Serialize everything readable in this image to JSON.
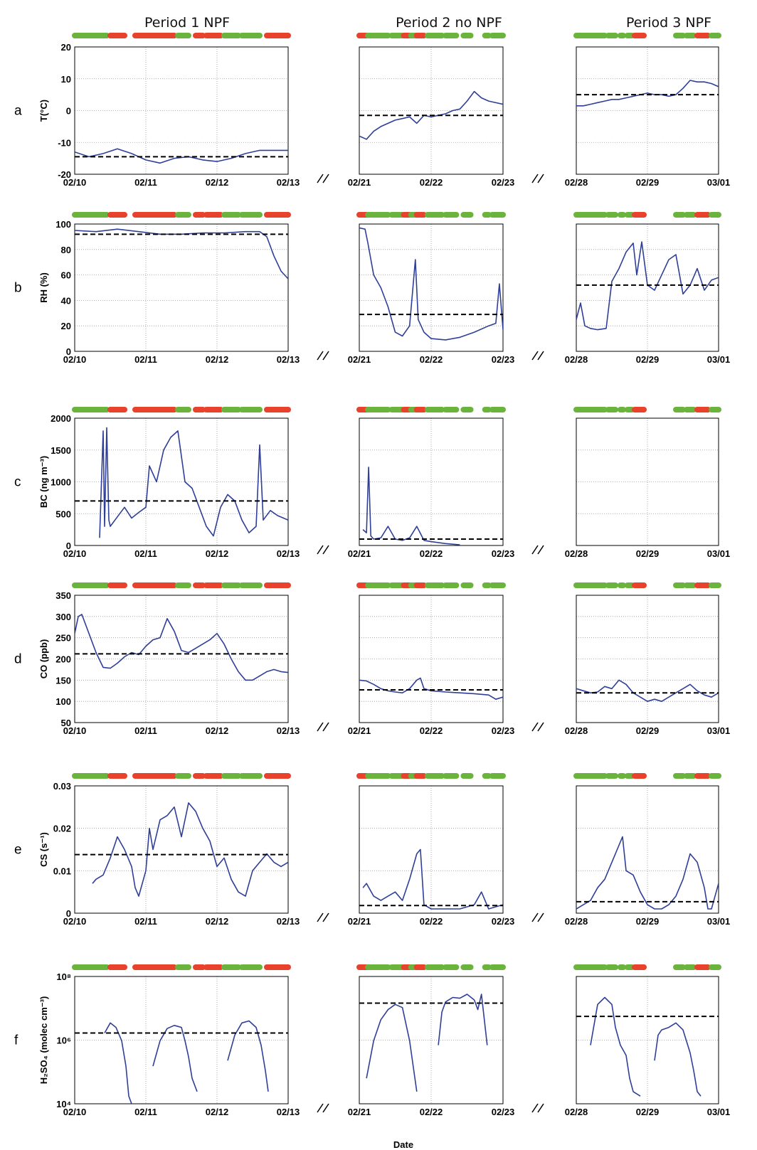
{
  "periods": [
    {
      "title": "Period 1 NPF",
      "start_day": 10,
      "end_day": 13,
      "tick_labels": [
        "02/10",
        "02/11",
        "02/12",
        "02/13"
      ]
    },
    {
      "title": "Period 2 no NPF",
      "start_day": 21,
      "end_day": 23,
      "tick_labels": [
        "02/21",
        "02/22",
        "02/23"
      ]
    },
    {
      "title": "Period 3 NPF",
      "start_day": 28,
      "end_day": 30,
      "tick_labels": [
        "02/28",
        "02/29",
        "03/01"
      ]
    }
  ],
  "xlabel": "Date",
  "colors": {
    "npf_marker": "#e8412c",
    "non_event_marker": "#6ab43e",
    "series": "#2f3f98",
    "mean_line": "#000000"
  },
  "chart_data": [
    {
      "type": "line",
      "panel_label": "a",
      "ylabel": "T(°C)",
      "ylim": [
        -20,
        20
      ],
      "yticks": [
        "-20",
        "-10",
        "0",
        "10",
        "20"
      ],
      "log_scale": false,
      "means": [
        -14.5,
        -1.5,
        5
      ],
      "series": [
        {
          "period": 1,
          "x": [
            10.0,
            10.2,
            10.4,
            10.6,
            10.8,
            11.0,
            11.2,
            11.4,
            11.6,
            11.8,
            12.0,
            12.2,
            12.4,
            12.6,
            12.8,
            13.0
          ],
          "y": [
            -13,
            -14.5,
            -13.5,
            -12,
            -13.5,
            -15.5,
            -16.5,
            -15,
            -14.5,
            -15.5,
            -16,
            -15,
            -13.5,
            -12.5,
            -12.5,
            -12.5
          ]
        },
        {
          "period": 2,
          "x": [
            21.0,
            21.1,
            21.2,
            21.3,
            21.4,
            21.5,
            21.6,
            21.7,
            21.8,
            21.9,
            22.0,
            22.1,
            22.2,
            22.3,
            22.4,
            22.5,
            22.6,
            22.7,
            22.8,
            23.0
          ],
          "y": [
            -8,
            -9,
            -6.5,
            -5,
            -4,
            -3,
            -2.5,
            -2,
            -4,
            -1.5,
            -2,
            -1.5,
            -1,
            0,
            0.5,
            3,
            6,
            4,
            3,
            2
          ]
        },
        {
          "period": 3,
          "x": [
            28.0,
            28.1,
            28.2,
            28.3,
            28.4,
            28.5,
            28.6,
            28.7,
            28.8,
            28.9,
            29.0,
            29.1,
            29.2,
            29.3,
            29.4,
            29.5,
            29.6,
            29.7,
            29.8,
            29.9,
            30.0
          ],
          "y": [
            1.5,
            1.5,
            2,
            2.5,
            3,
            3.5,
            3.5,
            4,
            4.5,
            5,
            5.5,
            5,
            5,
            4.5,
            5,
            7,
            9.5,
            9,
            9,
            8.5,
            7.5
          ]
        }
      ]
    },
    {
      "type": "line",
      "panel_label": "b",
      "ylabel": "RH (%)",
      "ylim": [
        0,
        100
      ],
      "yticks": [
        "0",
        "20",
        "40",
        "60",
        "80",
        "100"
      ],
      "log_scale": false,
      "means": [
        92,
        29,
        52
      ],
      "series": [
        {
          "period": 1,
          "x": [
            10.0,
            10.3,
            10.6,
            10.9,
            11.2,
            11.5,
            11.8,
            12.1,
            12.4,
            12.6,
            12.7,
            12.8,
            12.9,
            13.0
          ],
          "y": [
            95,
            94,
            96,
            94,
            92,
            92,
            93,
            93,
            94,
            94,
            90,
            75,
            63,
            57
          ]
        },
        {
          "period": 2,
          "x": [
            21.0,
            21.08,
            21.12,
            21.2,
            21.3,
            21.4,
            21.5,
            21.6,
            21.7,
            21.78,
            21.82,
            21.9,
            22.0,
            22.2,
            22.4,
            22.6,
            22.8,
            22.9,
            22.95,
            23.0
          ],
          "y": [
            97,
            96,
            85,
            60,
            50,
            35,
            15,
            12,
            20,
            72,
            25,
            15,
            10,
            9,
            11,
            15,
            20,
            22,
            53,
            17
          ]
        },
        {
          "period": 3,
          "x": [
            28.0,
            28.06,
            28.12,
            28.2,
            28.3,
            28.42,
            28.5,
            28.6,
            28.7,
            28.8,
            28.85,
            28.92,
            29.0,
            29.1,
            29.2,
            29.3,
            29.4,
            29.5,
            29.6,
            29.7,
            29.8,
            29.9,
            30.0
          ],
          "y": [
            25,
            38,
            20,
            18,
            17,
            18,
            55,
            65,
            78,
            85,
            60,
            86,
            52,
            48,
            60,
            72,
            76,
            45,
            52,
            65,
            48,
            56,
            58
          ]
        }
      ]
    },
    {
      "type": "line",
      "panel_label": "c",
      "ylabel": "BC (ng m⁻³)",
      "ylim": [
        0,
        2000
      ],
      "yticks": [
        "0",
        "500",
        "1000",
        "1500",
        "2000"
      ],
      "log_scale": false,
      "means": [
        700,
        100,
        null
      ],
      "series": [
        {
          "period": 1,
          "x": [
            10.35,
            10.4,
            10.42,
            10.45,
            10.48,
            10.5,
            10.6,
            10.7,
            10.8,
            10.9,
            11.0,
            11.05,
            11.15,
            11.25,
            11.35,
            11.45,
            11.55,
            11.65,
            11.75,
            11.85,
            11.95,
            12.05,
            12.15,
            12.25,
            12.35,
            12.45,
            12.55,
            12.6,
            12.65,
            12.75,
            12.85,
            13.0
          ],
          "y": [
            120,
            1800,
            300,
            1850,
            400,
            300,
            450,
            600,
            430,
            520,
            600,
            1250,
            1000,
            1500,
            1700,
            1800,
            1000,
            900,
            600,
            300,
            150,
            600,
            800,
            700,
            400,
            200,
            300,
            1580,
            400,
            550,
            470,
            400
          ]
        },
        {
          "period": 2,
          "x": [
            21.05,
            21.1,
            21.13,
            21.16,
            21.2,
            21.3,
            21.4,
            21.5,
            21.6,
            21.7,
            21.8,
            21.9,
            22.0,
            22.2,
            22.4
          ],
          "y": [
            250,
            200,
            1230,
            150,
            100,
            120,
            300,
            100,
            80,
            120,
            300,
            80,
            60,
            30,
            10
          ]
        }
      ]
    },
    {
      "type": "line",
      "panel_label": "d",
      "ylabel": "CO (ppb)",
      "ylim": [
        50,
        350
      ],
      "yticks": [
        "50",
        "100",
        "150",
        "200",
        "250",
        "300",
        "350"
      ],
      "log_scale": false,
      "means": [
        212,
        127,
        120
      ],
      "series": [
        {
          "period": 1,
          "x": [
            10.0,
            10.05,
            10.1,
            10.2,
            10.3,
            10.4,
            10.5,
            10.6,
            10.7,
            10.8,
            10.9,
            11.0,
            11.1,
            11.2,
            11.3,
            11.4,
            11.5,
            11.6,
            11.7,
            11.8,
            11.9,
            12.0,
            12.1,
            12.2,
            12.3,
            12.4,
            12.5,
            12.6,
            12.7,
            12.8,
            12.9,
            13.0
          ],
          "y": [
            260,
            300,
            305,
            260,
            215,
            180,
            178,
            190,
            205,
            215,
            210,
            230,
            245,
            250,
            295,
            265,
            220,
            215,
            225,
            235,
            245,
            260,
            235,
            200,
            170,
            150,
            150,
            160,
            170,
            175,
            170,
            168
          ]
        },
        {
          "period": 2,
          "x": [
            21.0,
            21.1,
            21.2,
            21.3,
            21.4,
            21.5,
            21.6,
            21.7,
            21.8,
            21.85,
            21.9,
            22.0,
            22.2,
            22.4,
            22.6,
            22.8,
            22.9,
            23.0
          ],
          "y": [
            150,
            148,
            140,
            130,
            125,
            122,
            120,
            130,
            150,
            155,
            130,
            125,
            122,
            120,
            118,
            115,
            105,
            110
          ]
        },
        {
          "period": 3,
          "x": [
            28.0,
            28.1,
            28.2,
            28.3,
            28.4,
            28.5,
            28.6,
            28.7,
            28.8,
            28.9,
            29.0,
            29.1,
            29.2,
            29.3,
            29.4,
            29.5,
            29.6,
            29.7,
            29.8,
            29.9,
            30.0
          ],
          "y": [
            130,
            125,
            120,
            122,
            135,
            130,
            150,
            140,
            120,
            110,
            100,
            105,
            100,
            110,
            120,
            130,
            140,
            125,
            115,
            110,
            120
          ]
        }
      ]
    },
    {
      "type": "line",
      "panel_label": "e",
      "ylabel": "CS (s⁻¹)",
      "ylim": [
        0,
        0.03
      ],
      "yticks": [
        "0",
        "0.01",
        "0.02",
        "0.03"
      ],
      "log_scale": false,
      "means": [
        0.0138,
        0.0018,
        0.0027
      ],
      "series": [
        {
          "period": 1,
          "x": [
            10.25,
            10.3,
            10.4,
            10.5,
            10.6,
            10.7,
            10.8,
            10.85,
            10.9,
            11.0,
            11.05,
            11.1,
            11.2,
            11.3,
            11.4,
            11.5,
            11.6,
            11.7,
            11.8,
            11.9,
            12.0,
            12.1,
            12.2,
            12.3,
            12.4,
            12.5,
            12.6,
            12.7,
            12.8,
            12.9,
            13.0
          ],
          "y": [
            0.007,
            0.008,
            0.009,
            0.013,
            0.018,
            0.015,
            0.011,
            0.006,
            0.004,
            0.01,
            0.02,
            0.015,
            0.022,
            0.023,
            0.025,
            0.018,
            0.026,
            0.024,
            0.02,
            0.017,
            0.011,
            0.013,
            0.008,
            0.005,
            0.004,
            0.01,
            0.012,
            0.014,
            0.012,
            0.011,
            0.012
          ]
        },
        {
          "period": 2,
          "x": [
            21.05,
            21.1,
            21.2,
            21.3,
            21.4,
            21.5,
            21.6,
            21.7,
            21.8,
            21.85,
            21.9,
            22.0,
            22.2,
            22.4,
            22.6,
            22.7,
            22.8,
            23.0
          ],
          "y": [
            0.006,
            0.007,
            0.004,
            0.003,
            0.004,
            0.005,
            0.003,
            0.008,
            0.014,
            0.015,
            0.002,
            0.001,
            0.001,
            0.001,
            0.002,
            0.005,
            0.001,
            0.002
          ]
        },
        {
          "period": 3,
          "x": [
            28.0,
            28.1,
            28.2,
            28.3,
            28.4,
            28.5,
            28.6,
            28.65,
            28.7,
            28.8,
            28.9,
            29.0,
            29.1,
            29.2,
            29.3,
            29.4,
            29.5,
            29.6,
            29.7,
            29.8,
            29.85,
            29.9,
            30.0
          ],
          "y": [
            0.001,
            0.002,
            0.003,
            0.006,
            0.008,
            0.012,
            0.016,
            0.018,
            0.01,
            0.009,
            0.005,
            0.002,
            0.001,
            0.001,
            0.002,
            0.004,
            0.008,
            0.014,
            0.012,
            0.006,
            0.001,
            0.001,
            0.007
          ]
        }
      ]
    },
    {
      "type": "line",
      "panel_label": "f",
      "ylabel": "H₂SO₄ (molec cm⁻³)",
      "ylim": [
        10000,
        1000000000
      ],
      "yticks": [
        "10⁴",
        "10⁶",
        "10⁸"
      ],
      "log_scale": true,
      "means": [
        6000000,
        90000000,
        27000000
      ],
      "series": [
        {
          "period": 1,
          "x": [
            10.42,
            10.5,
            10.58,
            10.66,
            10.72,
            10.76,
            10.8
          ],
          "y": [
            6000000,
            15000000,
            10000000,
            3000000,
            300000,
            20000,
            8000
          ]
        },
        {
          "period": 1,
          "x": [
            11.1,
            11.2,
            11.3,
            11.4,
            11.5,
            11.55,
            11.6,
            11.65,
            11.72
          ],
          "y": [
            300000,
            3000000,
            9000000,
            12000000,
            10000000,
            3000000,
            700000,
            100000,
            30000
          ]
        },
        {
          "period": 1,
          "x": [
            12.15,
            12.25,
            12.35,
            12.45,
            12.55,
            12.62,
            12.68,
            12.72
          ],
          "y": [
            500000,
            5000000,
            15000000,
            18000000,
            10000000,
            2000000,
            200000,
            30000
          ]
        },
        {
          "period": 2,
          "x": [
            21.1,
            21.2,
            21.3,
            21.4,
            21.5,
            21.6,
            21.7,
            21.8
          ],
          "y": [
            100000,
            3000000,
            20000000,
            50000000,
            80000000,
            60000000,
            3000000,
            30000
          ]
        },
        {
          "period": 2,
          "x": [
            22.1,
            22.15,
            22.2,
            22.3,
            22.4,
            22.5,
            22.6,
            22.65,
            22.7,
            22.78
          ],
          "y": [
            2000000,
            40000000,
            100000000,
            150000000,
            140000000,
            200000000,
            120000000,
            50000000,
            200000000,
            2000000
          ]
        },
        {
          "period": 3,
          "x": [
            28.2,
            28.3,
            28.4,
            28.5,
            28.55,
            28.62,
            28.7,
            28.75,
            28.8,
            28.9
          ],
          "y": [
            2000000,
            80000000,
            150000000,
            80000000,
            10000000,
            2000000,
            800000,
            100000,
            30000,
            20000
          ]
        },
        {
          "period": 3,
          "x": [
            29.1,
            29.15,
            29.2,
            29.3,
            29.4,
            29.5,
            29.6,
            29.65,
            29.7,
            29.75
          ],
          "y": [
            500000,
            5000000,
            8000000,
            10000000,
            15000000,
            8000000,
            1000000,
            200000,
            30000,
            20000
          ]
        }
      ]
    }
  ]
}
